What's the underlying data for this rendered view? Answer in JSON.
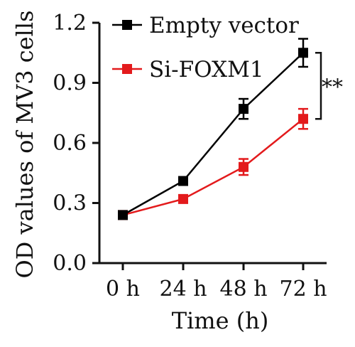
{
  "chart_data": {
    "type": "line",
    "title": "",
    "xlabel": "Time (h)",
    "ylabel": "OD values of MV3 cells",
    "categories": [
      "0 h",
      "24 h",
      "48 h",
      "72 h"
    ],
    "ylim": [
      0,
      1.2
    ],
    "yticks": [
      "0.0",
      "0.3",
      "0.6",
      "0.9",
      "1.2"
    ],
    "grid": false,
    "legend_position": "top-left",
    "series": [
      {
        "name": "Empty vector",
        "color": "#000000",
        "marker": "square",
        "values": [
          0.24,
          0.41,
          0.77,
          1.05
        ],
        "errors": [
          0.015,
          0.015,
          0.05,
          0.07
        ]
      },
      {
        "name": "Si-FOXM1",
        "color": "#e31a1c",
        "marker": "square",
        "values": [
          0.24,
          0.32,
          0.48,
          0.72
        ],
        "errors": [
          0.015,
          0.015,
          0.04,
          0.05
        ]
      }
    ],
    "annotations": [
      {
        "text": "**",
        "between_series": [
          "Empty vector",
          "Si-FOXM1"
        ],
        "at_category": "72 h"
      }
    ]
  }
}
